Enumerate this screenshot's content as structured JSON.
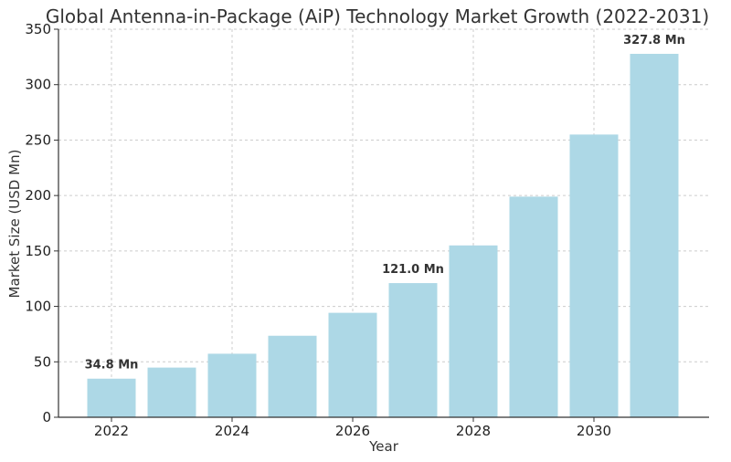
{
  "chart_data": {
    "type": "bar",
    "title": "Global Antenna-in-Package (AiP) Technology Market Growth (2022-2031)",
    "xlabel": "Year",
    "ylabel": "Market Size (USD Mn)",
    "categories": [
      2022,
      2023,
      2024,
      2025,
      2026,
      2027,
      2028,
      2029,
      2030,
      2031
    ],
    "values": [
      34.8,
      44.8,
      57.3,
      73.5,
      94.2,
      121.0,
      155.0,
      199.0,
      255.0,
      327.8
    ],
    "x_ticks": [
      "2022",
      "2024",
      "2026",
      "2028",
      "2030"
    ],
    "y_ticks": [
      "0",
      "50",
      "100",
      "150",
      "200",
      "250",
      "300",
      "350"
    ],
    "ylim": [
      0,
      350
    ],
    "grid": true,
    "bar_color": "#add8e6",
    "data_labels": [
      {
        "category": 2022,
        "text": "34.8 Mn"
      },
      {
        "category": 2027,
        "text": "121.0 Mn"
      },
      {
        "category": 2031,
        "text": "327.8 Mn"
      }
    ]
  }
}
